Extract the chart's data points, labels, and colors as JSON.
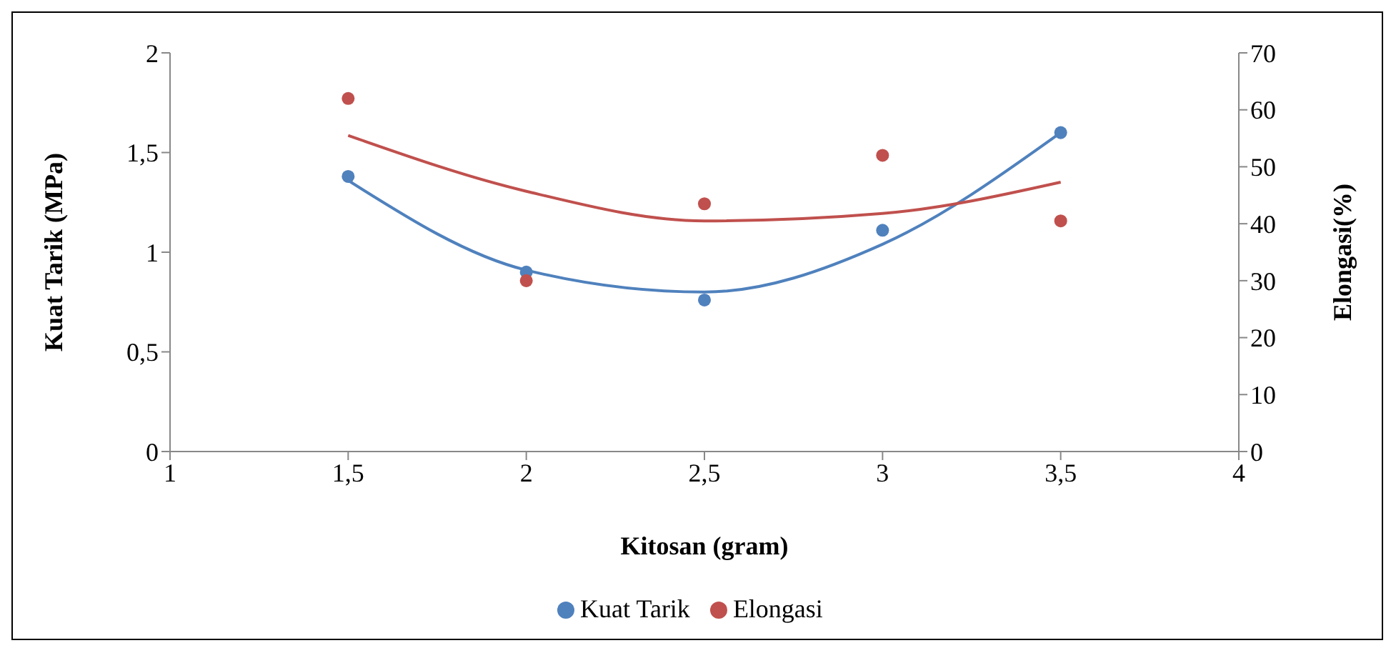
{
  "chart_data": {
    "type": "scatter",
    "xlabel": "Kitosan  (gram)",
    "ylabel": "Kuat Tarik (MPa)",
    "y2label": "Elongasi(%)",
    "x": [
      1.5,
      2,
      2.5,
      3,
      3.5
    ],
    "series": [
      {
        "name": "Kuat Tarik",
        "color": "#4f81bd",
        "values": [
          1.38,
          0.9,
          0.76,
          1.11,
          1.6
        ],
        "marker": "circle"
      },
      {
        "name": "Elongasi",
        "color": "#c0504d",
        "axis": "y2",
        "values": [
          62,
          30,
          43.5,
          52,
          40.5
        ],
        "marker": "circle"
      },
      {
        "type": "line",
        "color": "#4f81bd",
        "x": [
          1.5,
          2,
          2.5,
          3,
          3.5
        ],
        "values": [
          1.36,
          0.91,
          0.8,
          1.04,
          1.6
        ],
        "marker": "none"
      },
      {
        "type": "line",
        "color": "#c0504d",
        "axis": "y2",
        "x": [
          1.5,
          2,
          2.5,
          3,
          3.5
        ],
        "values": [
          55.5,
          45.7,
          40.5,
          41.8,
          47.3
        ],
        "marker": "none"
      }
    ],
    "xlim": [
      1,
      4
    ],
    "xticks": [
      1,
      {
        "value": 1.5,
        "label": "1,5"
      },
      2,
      {
        "value": 2.5,
        "label": "2,5"
      },
      3,
      {
        "value": 3.5,
        "label": "3,5"
      },
      4
    ],
    "ylim": [
      0,
      2
    ],
    "yticks": [
      0,
      {
        "value": 0.5,
        "label": "0,5"
      },
      1,
      {
        "value": 1.5,
        "label": "1,5"
      },
      2
    ],
    "y2lim": [
      0,
      70
    ],
    "y2ticks": [
      0,
      10,
      20,
      30,
      40,
      50,
      60,
      70
    ],
    "grid": false,
    "legend": "bottom"
  }
}
